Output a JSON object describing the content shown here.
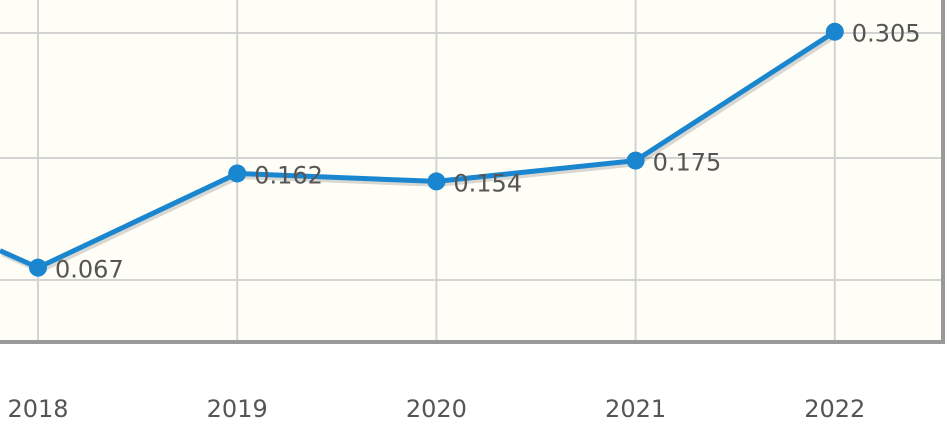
{
  "chart_data": {
    "type": "line",
    "title": "",
    "xlabel": "",
    "ylabel": "",
    "categories": [
      "2018",
      "2019",
      "2020",
      "2021",
      "2022"
    ],
    "series": [
      {
        "values": [
          0.067,
          0.162,
          0.154,
          0.175,
          0.305
        ],
        "labels": [
          "0.067",
          "0.162",
          "0.154",
          "0.175",
          "0.305"
        ]
      }
    ],
    "ylim": [
      -0.006,
      0.337
    ],
    "grid": true,
    "colors": {
      "line": "#1a86d0",
      "background": "#fefdf6",
      "grid": "#d3d3d3",
      "border": "#999999"
    }
  }
}
